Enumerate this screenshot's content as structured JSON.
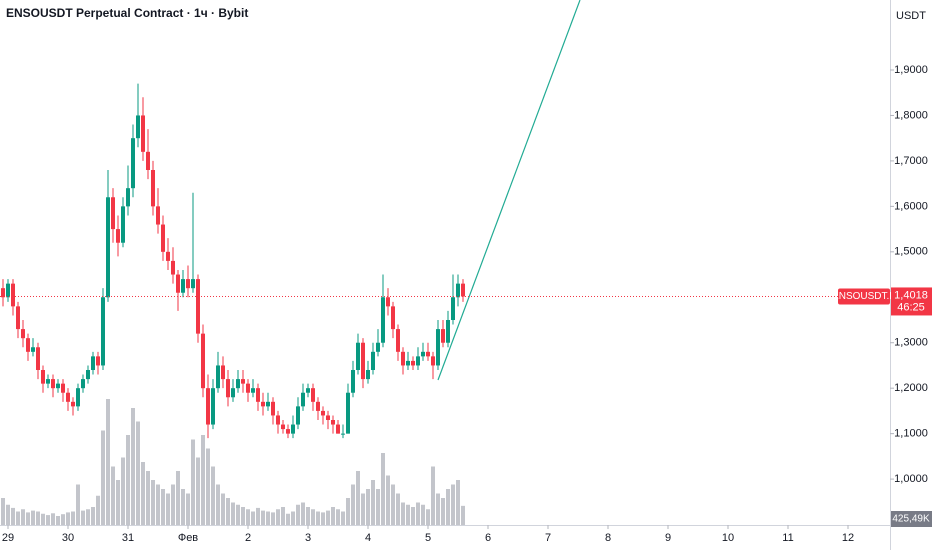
{
  "chart_data": {
    "type": "candlestick",
    "title": "ENSOUSDT Perpetual Contract · 1ч · Bybit",
    "y_axis_unit": "USDT",
    "xlim": [
      -3.2,
      352.8
    ],
    "ylim": [
      0.899,
      2.054
    ],
    "xticks": [
      {
        "value": 0,
        "label": "29"
      },
      {
        "value": 24,
        "label": "30"
      },
      {
        "value": 48,
        "label": "31"
      },
      {
        "value": 72,
        "label": "Фев"
      },
      {
        "value": 96,
        "label": "2"
      },
      {
        "value": 120,
        "label": "3"
      },
      {
        "value": 144,
        "label": "4"
      },
      {
        "value": 168,
        "label": "5"
      },
      {
        "value": 192,
        "label": "6"
      },
      {
        "value": 216,
        "label": "7"
      },
      {
        "value": 240,
        "label": "8"
      },
      {
        "value": 264,
        "label": "9"
      },
      {
        "value": 288,
        "label": "10"
      },
      {
        "value": 312,
        "label": "11"
      },
      {
        "value": 336,
        "label": "12"
      }
    ],
    "yticks": [
      {
        "value": 1.0,
        "label": "1,0000"
      },
      {
        "value": 1.1,
        "label": "1,1000"
      },
      {
        "value": 1.2,
        "label": "1,2000"
      },
      {
        "value": 1.3,
        "label": "1,3000"
      },
      {
        "value": 1.4,
        "label": "1,4000"
      },
      {
        "value": 1.5,
        "label": "1,5000"
      },
      {
        "value": 1.6,
        "label": "1,6000"
      },
      {
        "value": 1.7,
        "label": "1,7000"
      },
      {
        "value": 1.8,
        "label": "1,8000"
      },
      {
        "value": 1.9,
        "label": "1,9000"
      }
    ],
    "grid": false,
    "up_color": "#089981",
    "down_color": "#f23645",
    "x": [
      -2,
      0,
      2,
      4,
      6,
      8,
      10,
      12,
      14,
      16,
      18,
      20,
      22,
      24,
      26,
      28,
      30,
      32,
      34,
      36,
      38,
      40,
      42,
      44,
      46,
      48,
      50,
      52,
      54,
      56,
      58,
      60,
      62,
      64,
      66,
      68,
      70,
      72,
      74,
      76,
      78,
      80,
      82,
      84,
      86,
      88,
      90,
      92,
      94,
      96,
      98,
      100,
      102,
      104,
      106,
      108,
      110,
      112,
      114,
      116,
      118,
      120,
      122,
      124,
      126,
      128,
      130,
      132,
      134,
      136,
      138,
      140,
      142,
      144,
      146,
      148,
      150,
      152,
      154,
      156,
      158,
      160,
      162,
      164,
      166,
      168,
      170,
      172,
      174,
      176,
      178,
      180,
      182
    ],
    "candles": [
      [
        1.42,
        1.44,
        1.38,
        1.4
      ],
      [
        1.4,
        1.44,
        1.39,
        1.43
      ],
      [
        1.43,
        1.44,
        1.36,
        1.38
      ],
      [
        1.38,
        1.39,
        1.31,
        1.33
      ],
      [
        1.33,
        1.35,
        1.29,
        1.31
      ],
      [
        1.31,
        1.32,
        1.26,
        1.28
      ],
      [
        1.28,
        1.31,
        1.27,
        1.29
      ],
      [
        1.29,
        1.3,
        1.22,
        1.24
      ],
      [
        1.24,
        1.25,
        1.19,
        1.21
      ],
      [
        1.21,
        1.23,
        1.2,
        1.22
      ],
      [
        1.22,
        1.23,
        1.18,
        1.2
      ],
      [
        1.2,
        1.22,
        1.19,
        1.21
      ],
      [
        1.21,
        1.22,
        1.17,
        1.19
      ],
      [
        1.19,
        1.2,
        1.15,
        1.17
      ],
      [
        1.17,
        1.18,
        1.14,
        1.16
      ],
      [
        1.16,
        1.21,
        1.15,
        1.2
      ],
      [
        1.2,
        1.23,
        1.19,
        1.22
      ],
      [
        1.22,
        1.25,
        1.21,
        1.24
      ],
      [
        1.24,
        1.28,
        1.23,
        1.27
      ],
      [
        1.27,
        1.28,
        1.23,
        1.25
      ],
      [
        1.25,
        1.42,
        1.24,
        1.4
      ],
      [
        1.4,
        1.68,
        1.39,
        1.62
      ],
      [
        1.62,
        1.64,
        1.52,
        1.55
      ],
      [
        1.55,
        1.58,
        1.49,
        1.52
      ],
      [
        1.52,
        1.62,
        1.51,
        1.6
      ],
      [
        1.6,
        1.69,
        1.58,
        1.64
      ],
      [
        1.64,
        1.78,
        1.62,
        1.75
      ],
      [
        1.75,
        1.87,
        1.73,
        1.8
      ],
      [
        1.8,
        1.84,
        1.7,
        1.72
      ],
      [
        1.72,
        1.77,
        1.66,
        1.68
      ],
      [
        1.68,
        1.7,
        1.58,
        1.6
      ],
      [
        1.6,
        1.64,
        1.54,
        1.56
      ],
      [
        1.56,
        1.58,
        1.48,
        1.5
      ],
      [
        1.5,
        1.53,
        1.46,
        1.48
      ],
      [
        1.48,
        1.51,
        1.43,
        1.45
      ],
      [
        1.45,
        1.46,
        1.37,
        1.41
      ],
      [
        1.41,
        1.46,
        1.4,
        1.44
      ],
      [
        1.44,
        1.47,
        1.4,
        1.42
      ],
      [
        1.42,
        1.63,
        1.41,
        1.44
      ],
      [
        1.44,
        1.45,
        1.3,
        1.32
      ],
      [
        1.32,
        1.34,
        1.18,
        1.2
      ],
      [
        1.2,
        1.23,
        1.09,
        1.12
      ],
      [
        1.12,
        1.22,
        1.11,
        1.2
      ],
      [
        1.2,
        1.28,
        1.19,
        1.25
      ],
      [
        1.25,
        1.27,
        1.2,
        1.22
      ],
      [
        1.22,
        1.24,
        1.16,
        1.18
      ],
      [
        1.18,
        1.22,
        1.17,
        1.2
      ],
      [
        1.2,
        1.24,
        1.19,
        1.22
      ],
      [
        1.22,
        1.24,
        1.19,
        1.21
      ],
      [
        1.21,
        1.22,
        1.17,
        1.19
      ],
      [
        1.19,
        1.22,
        1.18,
        1.2
      ],
      [
        1.2,
        1.21,
        1.15,
        1.17
      ],
      [
        1.17,
        1.19,
        1.14,
        1.16
      ],
      [
        1.16,
        1.19,
        1.15,
        1.17
      ],
      [
        1.17,
        1.18,
        1.12,
        1.14
      ],
      [
        1.14,
        1.15,
        1.1,
        1.12
      ],
      [
        1.12,
        1.13,
        1.1,
        1.11
      ],
      [
        1.11,
        1.12,
        1.09,
        1.1
      ],
      [
        1.1,
        1.14,
        1.09,
        1.12
      ],
      [
        1.12,
        1.18,
        1.11,
        1.16
      ],
      [
        1.16,
        1.21,
        1.15,
        1.19
      ],
      [
        1.19,
        1.21,
        1.18,
        1.2
      ],
      [
        1.2,
        1.21,
        1.15,
        1.17
      ],
      [
        1.17,
        1.18,
        1.13,
        1.15
      ],
      [
        1.15,
        1.16,
        1.12,
        1.14
      ],
      [
        1.14,
        1.15,
        1.11,
        1.13
      ],
      [
        1.13,
        1.14,
        1.1,
        1.12
      ],
      [
        1.12,
        1.13,
        1.1,
        1.1
      ],
      [
        1.1,
        1.12,
        1.09,
        1.1
      ],
      [
        1.1,
        1.21,
        1.1,
        1.19
      ],
      [
        1.19,
        1.26,
        1.18,
        1.24
      ],
      [
        1.24,
        1.32,
        1.23,
        1.3
      ],
      [
        1.3,
        1.31,
        1.2,
        1.22
      ],
      [
        1.22,
        1.26,
        1.21,
        1.24
      ],
      [
        1.24,
        1.3,
        1.23,
        1.28
      ],
      [
        1.28,
        1.33,
        1.27,
        1.3
      ],
      [
        1.3,
        1.45,
        1.29,
        1.4
      ],
      [
        1.4,
        1.42,
        1.36,
        1.38
      ],
      [
        1.38,
        1.39,
        1.31,
        1.33
      ],
      [
        1.33,
        1.34,
        1.26,
        1.28
      ],
      [
        1.28,
        1.29,
        1.23,
        1.25
      ],
      [
        1.25,
        1.28,
        1.24,
        1.26
      ],
      [
        1.26,
        1.27,
        1.24,
        1.25
      ],
      [
        1.25,
        1.29,
        1.24,
        1.27
      ],
      [
        1.27,
        1.3,
        1.26,
        1.28
      ],
      [
        1.28,
        1.3,
        1.26,
        1.27
      ],
      [
        1.27,
        1.28,
        1.22,
        1.25
      ],
      [
        1.25,
        1.35,
        1.24,
        1.33
      ],
      [
        1.33,
        1.35,
        1.29,
        1.3
      ],
      [
        1.3,
        1.37,
        1.29,
        1.35
      ],
      [
        1.35,
        1.45,
        1.34,
        1.4
      ],
      [
        1.4,
        1.45,
        1.38,
        1.43
      ],
      [
        1.43,
        1.44,
        1.39,
        1.4018
      ]
    ],
    "volume": {
      "color": "#c3c5cb",
      "ylim": [
        0,
        4000
      ],
      "values": [
        600,
        450,
        380,
        300,
        350,
        280,
        320,
        300,
        250,
        220,
        260,
        200,
        240,
        280,
        300,
        900,
        320,
        350,
        400,
        650,
        2100,
        2800,
        1300,
        1000,
        1500,
        2000,
        2600,
        2300,
        1400,
        1200,
        1000,
        900,
        800,
        700,
        900,
        1200,
        800,
        700,
        1900,
        1500,
        2000,
        1700,
        1300,
        900,
        700,
        600,
        500,
        450,
        400,
        350,
        300,
        380,
        320,
        300,
        280,
        350,
        400,
        250,
        300,
        450,
        500,
        400,
        350,
        300,
        280,
        320,
        400,
        350,
        300,
        600,
        900,
        1200,
        700,
        800,
        1000,
        800,
        1600,
        1100,
        900,
        700,
        500,
        450,
        400,
        500,
        450,
        350,
        1300,
        700,
        600,
        800,
        900,
        1000,
        425.49
      ],
      "last_value_label": "425,49K"
    },
    "last_price": {
      "value": 1.4018,
      "label": "1,4018",
      "symbol": "ENSOUSDT.P",
      "countdown": "46:25",
      "color": "#f23645"
    },
    "trendline": {
      "color": "#22ab94",
      "x": [
        172,
        228.8
      ],
      "y": [
        1.218,
        2.054
      ]
    }
  }
}
